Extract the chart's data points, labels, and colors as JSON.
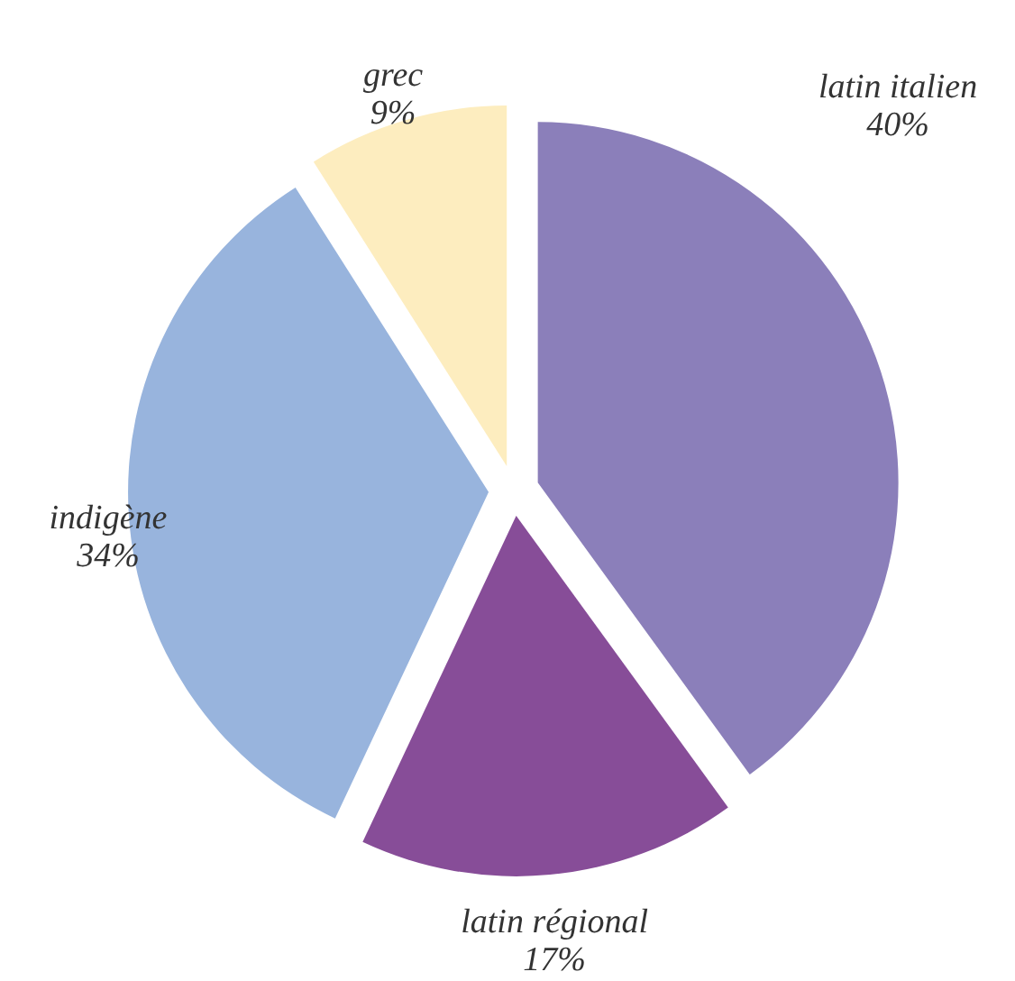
{
  "chart_data": {
    "type": "pie",
    "categories": [
      "latin italien",
      "latin régional",
      "indigène",
      "grec"
    ],
    "values": [
      40,
      17,
      34,
      9
    ],
    "value_labels": [
      "40%",
      "17%",
      "34%",
      "9%"
    ],
    "colors": [
      "#8b7fba",
      "#874d98",
      "#98b4dd",
      "#fdedbf"
    ]
  }
}
